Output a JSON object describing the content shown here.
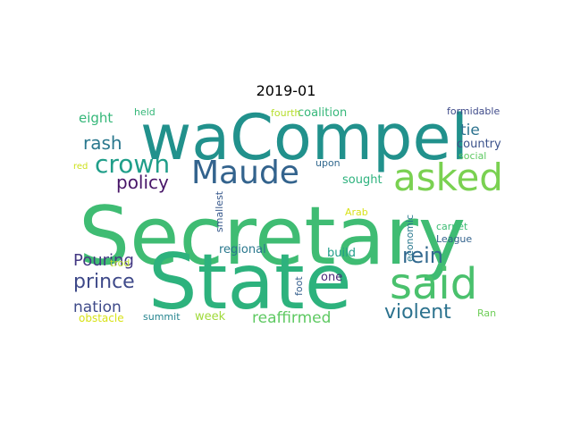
{
  "chart_data": {
    "type": "wordcloud",
    "title": "2019-01",
    "words": [
      {
        "text": "Secretary",
        "weight": 100,
        "color": "#3fbc73"
      },
      {
        "text": "State",
        "weight": 92,
        "color": "#2db27d"
      },
      {
        "text": "waCompel",
        "weight": 68,
        "color": "#21918c"
      },
      {
        "text": "said",
        "weight": 48,
        "color": "#4ac16d"
      },
      {
        "text": "asked",
        "weight": 42,
        "color": "#7ad151"
      },
      {
        "text": "Maude",
        "weight": 36,
        "color": "#33638d"
      },
      {
        "text": "crown",
        "weight": 27,
        "color": "#1f9e89"
      },
      {
        "text": "rein",
        "weight": 24,
        "color": "#31688e"
      },
      {
        "text": "violent",
        "weight": 22,
        "color": "#2c728e"
      },
      {
        "text": "prince",
        "weight": 21,
        "color": "#3e4989"
      },
      {
        "text": "rash",
        "weight": 19,
        "color": "#2a788e"
      },
      {
        "text": "policy",
        "weight": 19,
        "color": "#481668"
      },
      {
        "text": "Pouring",
        "weight": 18,
        "color": "#443983"
      },
      {
        "text": "reaffirmed",
        "weight": 17,
        "color": "#5ec962"
      },
      {
        "text": "nation",
        "weight": 17,
        "color": "#3e4a89"
      },
      {
        "text": "tie",
        "weight": 17,
        "color": "#2c728e"
      },
      {
        "text": "eight",
        "weight": 15,
        "color": "#35b779"
      },
      {
        "text": "coalition",
        "weight": 13,
        "color": "#35b779"
      },
      {
        "text": "regional",
        "weight": 12,
        "color": "#2a788e"
      },
      {
        "text": "build",
        "weight": 12,
        "color": "#1f9e89"
      },
      {
        "text": "sought",
        "weight": 12,
        "color": "#2db27d"
      },
      {
        "text": "week",
        "weight": 12,
        "color": "#9fda3a"
      },
      {
        "text": "country",
        "weight": 12,
        "color": "#3b528b"
      },
      {
        "text": "one",
        "weight": 12,
        "color": "#482878"
      },
      {
        "text": "held",
        "weight": 10,
        "color": "#35b779"
      },
      {
        "text": "fourth",
        "weight": 10,
        "color": "#b5de2b"
      },
      {
        "text": "formidable",
        "weight": 10,
        "color": "#3e4a89"
      },
      {
        "text": "upon",
        "weight": 10,
        "color": "#31688e"
      },
      {
        "text": "social",
        "weight": 10,
        "color": "#5ec962"
      },
      {
        "text": "red",
        "weight": 9,
        "color": "#cde11d"
      },
      {
        "text": "Arab",
        "weight": 10,
        "color": "#d8e219"
      },
      {
        "text": "economic",
        "weight": 10,
        "color": "#2a788e"
      },
      {
        "text": "carpet",
        "weight": 10,
        "color": "#3dbc74"
      },
      {
        "text": "League",
        "weight": 10,
        "color": "#33638d"
      },
      {
        "text": "smallest",
        "weight": 10,
        "color": "#38598c"
      },
      {
        "text": "trod",
        "weight": 10,
        "color": "#b8de29"
      },
      {
        "text": "foot",
        "weight": 10,
        "color": "#355f8d"
      },
      {
        "text": "obstacle",
        "weight": 11,
        "color": "#d8e219"
      },
      {
        "text": "summit",
        "weight": 10,
        "color": "#25848e"
      },
      {
        "text": "Ran",
        "weight": 10,
        "color": "#6ece58"
      }
    ]
  }
}
